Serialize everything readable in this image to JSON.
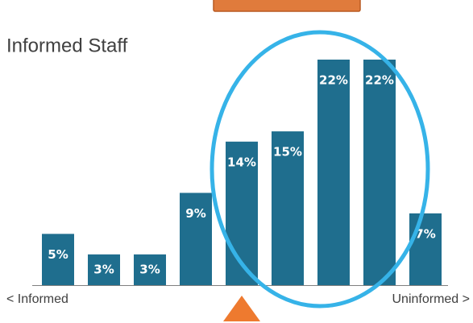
{
  "chart_data": {
    "type": "bar",
    "title": "Informed Staff",
    "x_label_left": "< Informed",
    "x_label_right": "Uninformed >",
    "categories": [
      null,
      null,
      null,
      null,
      null,
      null,
      null,
      null,
      null
    ],
    "values": [
      5,
      3,
      3,
      9,
      14,
      15,
      22,
      22,
      7
    ],
    "value_labels": [
      "5%",
      "3%",
      "3%",
      "9%",
      "14%",
      "15%",
      "22%",
      "22%",
      "7%"
    ],
    "color": "#1f6e8e"
  }
}
